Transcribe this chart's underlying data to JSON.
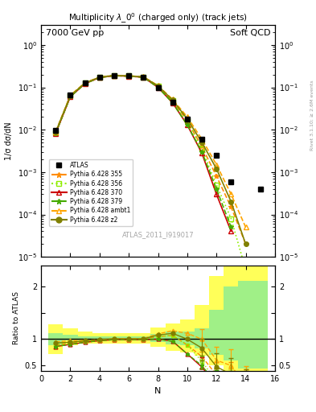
{
  "title_left": "7000 GeV pp",
  "title_right": "Soft QCD",
  "plot_title": "Multiplicity $\\lambda\\_0^0$ (charged only) (track jets)",
  "watermark": "ATLAS_2011_I919017",
  "right_label": "Rivet 3.1.10; ≥ 2.6M events",
  "xlabel": "N",
  "ylabel_main": "1/σ dσ/dN",
  "ylabel_ratio": "Ratio to ATLAS",
  "N_values": [
    1,
    2,
    3,
    4,
    5,
    6,
    7,
    8,
    9,
    10,
    11,
    12,
    13,
    14,
    15
  ],
  "ATLAS_y": [
    0.0095,
    0.067,
    0.13,
    0.175,
    0.19,
    0.185,
    0.175,
    0.1,
    0.045,
    0.018,
    0.006,
    0.0025,
    0.0006,
    null,
    0.0004
  ],
  "p355_y": [
    0.0085,
    0.062,
    0.125,
    0.172,
    0.19,
    0.185,
    0.175,
    0.105,
    0.048,
    0.016,
    0.004,
    0.0008,
    0.00015,
    2e-05,
    null
  ],
  "p356_y": [
    0.0085,
    0.062,
    0.125,
    0.172,
    0.19,
    0.185,
    0.175,
    0.105,
    0.048,
    0.016,
    0.0035,
    0.0005,
    8e-05,
    5e-06,
    null
  ],
  "p370_y": [
    0.0082,
    0.06,
    0.122,
    0.17,
    0.188,
    0.183,
    0.173,
    0.1,
    0.043,
    0.013,
    0.0028,
    0.0003,
    4e-05,
    null,
    null
  ],
  "p379_y": [
    0.0082,
    0.06,
    0.122,
    0.17,
    0.188,
    0.183,
    0.173,
    0.1,
    0.043,
    0.013,
    0.003,
    0.0004,
    5e-05,
    null,
    null
  ],
  "pambt1_y": [
    0.009,
    0.065,
    0.128,
    0.174,
    0.192,
    0.187,
    0.177,
    0.11,
    0.052,
    0.02,
    0.006,
    0.0015,
    0.0003,
    5e-05,
    null
  ],
  "pz2_y": [
    0.0088,
    0.063,
    0.126,
    0.173,
    0.191,
    0.186,
    0.176,
    0.108,
    0.05,
    0.018,
    0.005,
    0.0012,
    0.0002,
    2e-05,
    null
  ],
  "ratio_p355": [
    0.89,
    0.93,
    0.96,
    0.98,
    1.0,
    1.0,
    1.0,
    1.05,
    1.07,
    0.89,
    0.67,
    0.32,
    0.25,
    0.05,
    null
  ],
  "ratio_p356": [
    0.89,
    0.93,
    0.96,
    0.98,
    1.0,
    1.0,
    1.0,
    1.05,
    1.07,
    0.89,
    0.58,
    0.2,
    0.13,
    0.01,
    null
  ],
  "ratio_p370": [
    0.86,
    0.9,
    0.94,
    0.97,
    0.99,
    0.99,
    0.99,
    1.0,
    0.96,
    0.72,
    0.47,
    0.12,
    0.07,
    null,
    null
  ],
  "ratio_p379": [
    0.86,
    0.9,
    0.94,
    0.97,
    0.99,
    0.99,
    0.99,
    1.0,
    0.96,
    0.72,
    0.5,
    0.16,
    0.08,
    null,
    null
  ],
  "ratio_pambt1": [
    0.95,
    0.97,
    0.98,
    0.99,
    1.01,
    1.01,
    1.01,
    1.1,
    1.16,
    1.11,
    1.0,
    0.6,
    0.5,
    0.12,
    null
  ],
  "ratio_pz2": [
    0.93,
    0.94,
    0.97,
    0.99,
    1.005,
    1.005,
    1.005,
    1.08,
    1.11,
    1.0,
    0.83,
    0.48,
    0.33,
    0.05,
    null
  ],
  "color_355": "#ff8c00",
  "color_356": "#90ee00",
  "color_370": "#cc0000",
  "color_379": "#44aa00",
  "color_ambt1": "#ffa500",
  "color_z2": "#808000",
  "color_atlas": "#000000",
  "bg_color": "#ffffff",
  "band_bins": [
    0.5,
    1.5,
    2.5,
    3.5,
    4.5,
    5.5,
    6.5,
    7.5,
    8.5,
    9.5,
    10.5,
    11.5,
    12.5,
    13.5,
    15.5
  ],
  "inner_lo": [
    0.88,
    0.97,
    0.98,
    0.98,
    0.98,
    0.98,
    0.98,
    0.95,
    0.9,
    0.88,
    0.82,
    0.7,
    0.6,
    0.45
  ],
  "inner_hi": [
    1.12,
    1.08,
    1.06,
    1.05,
    1.05,
    1.05,
    1.05,
    1.1,
    1.15,
    1.15,
    1.2,
    1.55,
    2.0,
    2.1
  ],
  "outer_lo": [
    0.72,
    0.88,
    0.92,
    0.92,
    0.92,
    0.92,
    0.92,
    0.85,
    0.78,
    0.75,
    0.68,
    0.5,
    0.4,
    0.3
  ],
  "outer_hi": [
    1.28,
    1.2,
    1.15,
    1.12,
    1.12,
    1.12,
    1.12,
    1.22,
    1.3,
    1.38,
    1.65,
    2.2,
    2.55,
    2.6
  ]
}
